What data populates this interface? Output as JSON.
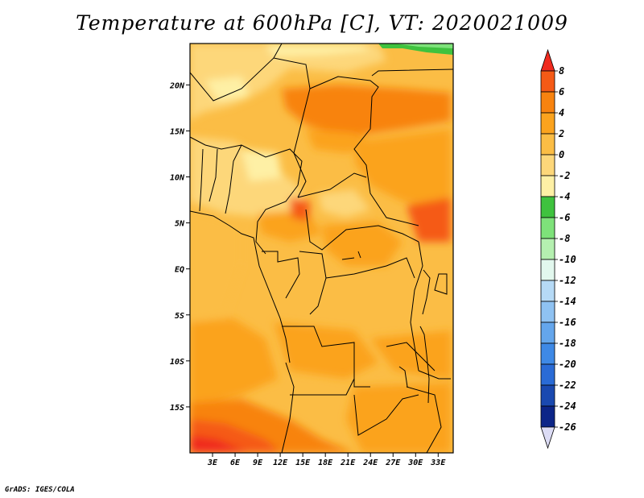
{
  "title": "Temperature at 600hPa [C], VT: 2020021009",
  "footer": "GrADS: IGES/COLA",
  "map": {
    "variable": "Temperature",
    "level": "600hPa",
    "units": "C",
    "valid_time": "2020021009",
    "lat_range": [
      -20,
      24.5
    ],
    "lon_range": [
      0,
      35
    ],
    "lat_ticks": [
      {
        "value": 20,
        "label": "20N"
      },
      {
        "value": 15,
        "label": "15N"
      },
      {
        "value": 10,
        "label": "10N"
      },
      {
        "value": 5,
        "label": "5N"
      },
      {
        "value": 0,
        "label": "EQ"
      },
      {
        "value": -5,
        "label": "5S"
      },
      {
        "value": -10,
        "label": "10S"
      },
      {
        "value": -15,
        "label": "15S"
      }
    ],
    "lon_ticks": [
      {
        "value": 3,
        "label": "3E"
      },
      {
        "value": 6,
        "label": "6E"
      },
      {
        "value": 9,
        "label": "9E"
      },
      {
        "value": 12,
        "label": "12E"
      },
      {
        "value": 15,
        "label": "15E"
      },
      {
        "value": 18,
        "label": "18E"
      },
      {
        "value": 21,
        "label": "21E"
      },
      {
        "value": 24,
        "label": "24E"
      },
      {
        "value": 27,
        "label": "27E"
      },
      {
        "value": 30,
        "label": "30E"
      },
      {
        "value": 33,
        "label": "33E"
      }
    ]
  },
  "colorbar": {
    "levels": [
      "8",
      "6",
      "4",
      "2",
      "0",
      "-2",
      "-4",
      "-6",
      "-8",
      "-10",
      "-12",
      "-14",
      "-16",
      "-18",
      "-20",
      "-22",
      "-24",
      "-26"
    ],
    "colors": [
      "#f02a1e",
      "#f55a16",
      "#f8830f",
      "#fba31e",
      "#fbbd45",
      "#fdd77a",
      "#fef0a5",
      "#3fc23e",
      "#7ee27a",
      "#b5f0b0",
      "#e2f8ee",
      "#b6daf6",
      "#8fc2f2",
      "#64a6ec",
      "#3e89e6",
      "#2a6bd6",
      "#1a49b0",
      "#0c2588",
      "#dcdcf5"
    ]
  }
}
